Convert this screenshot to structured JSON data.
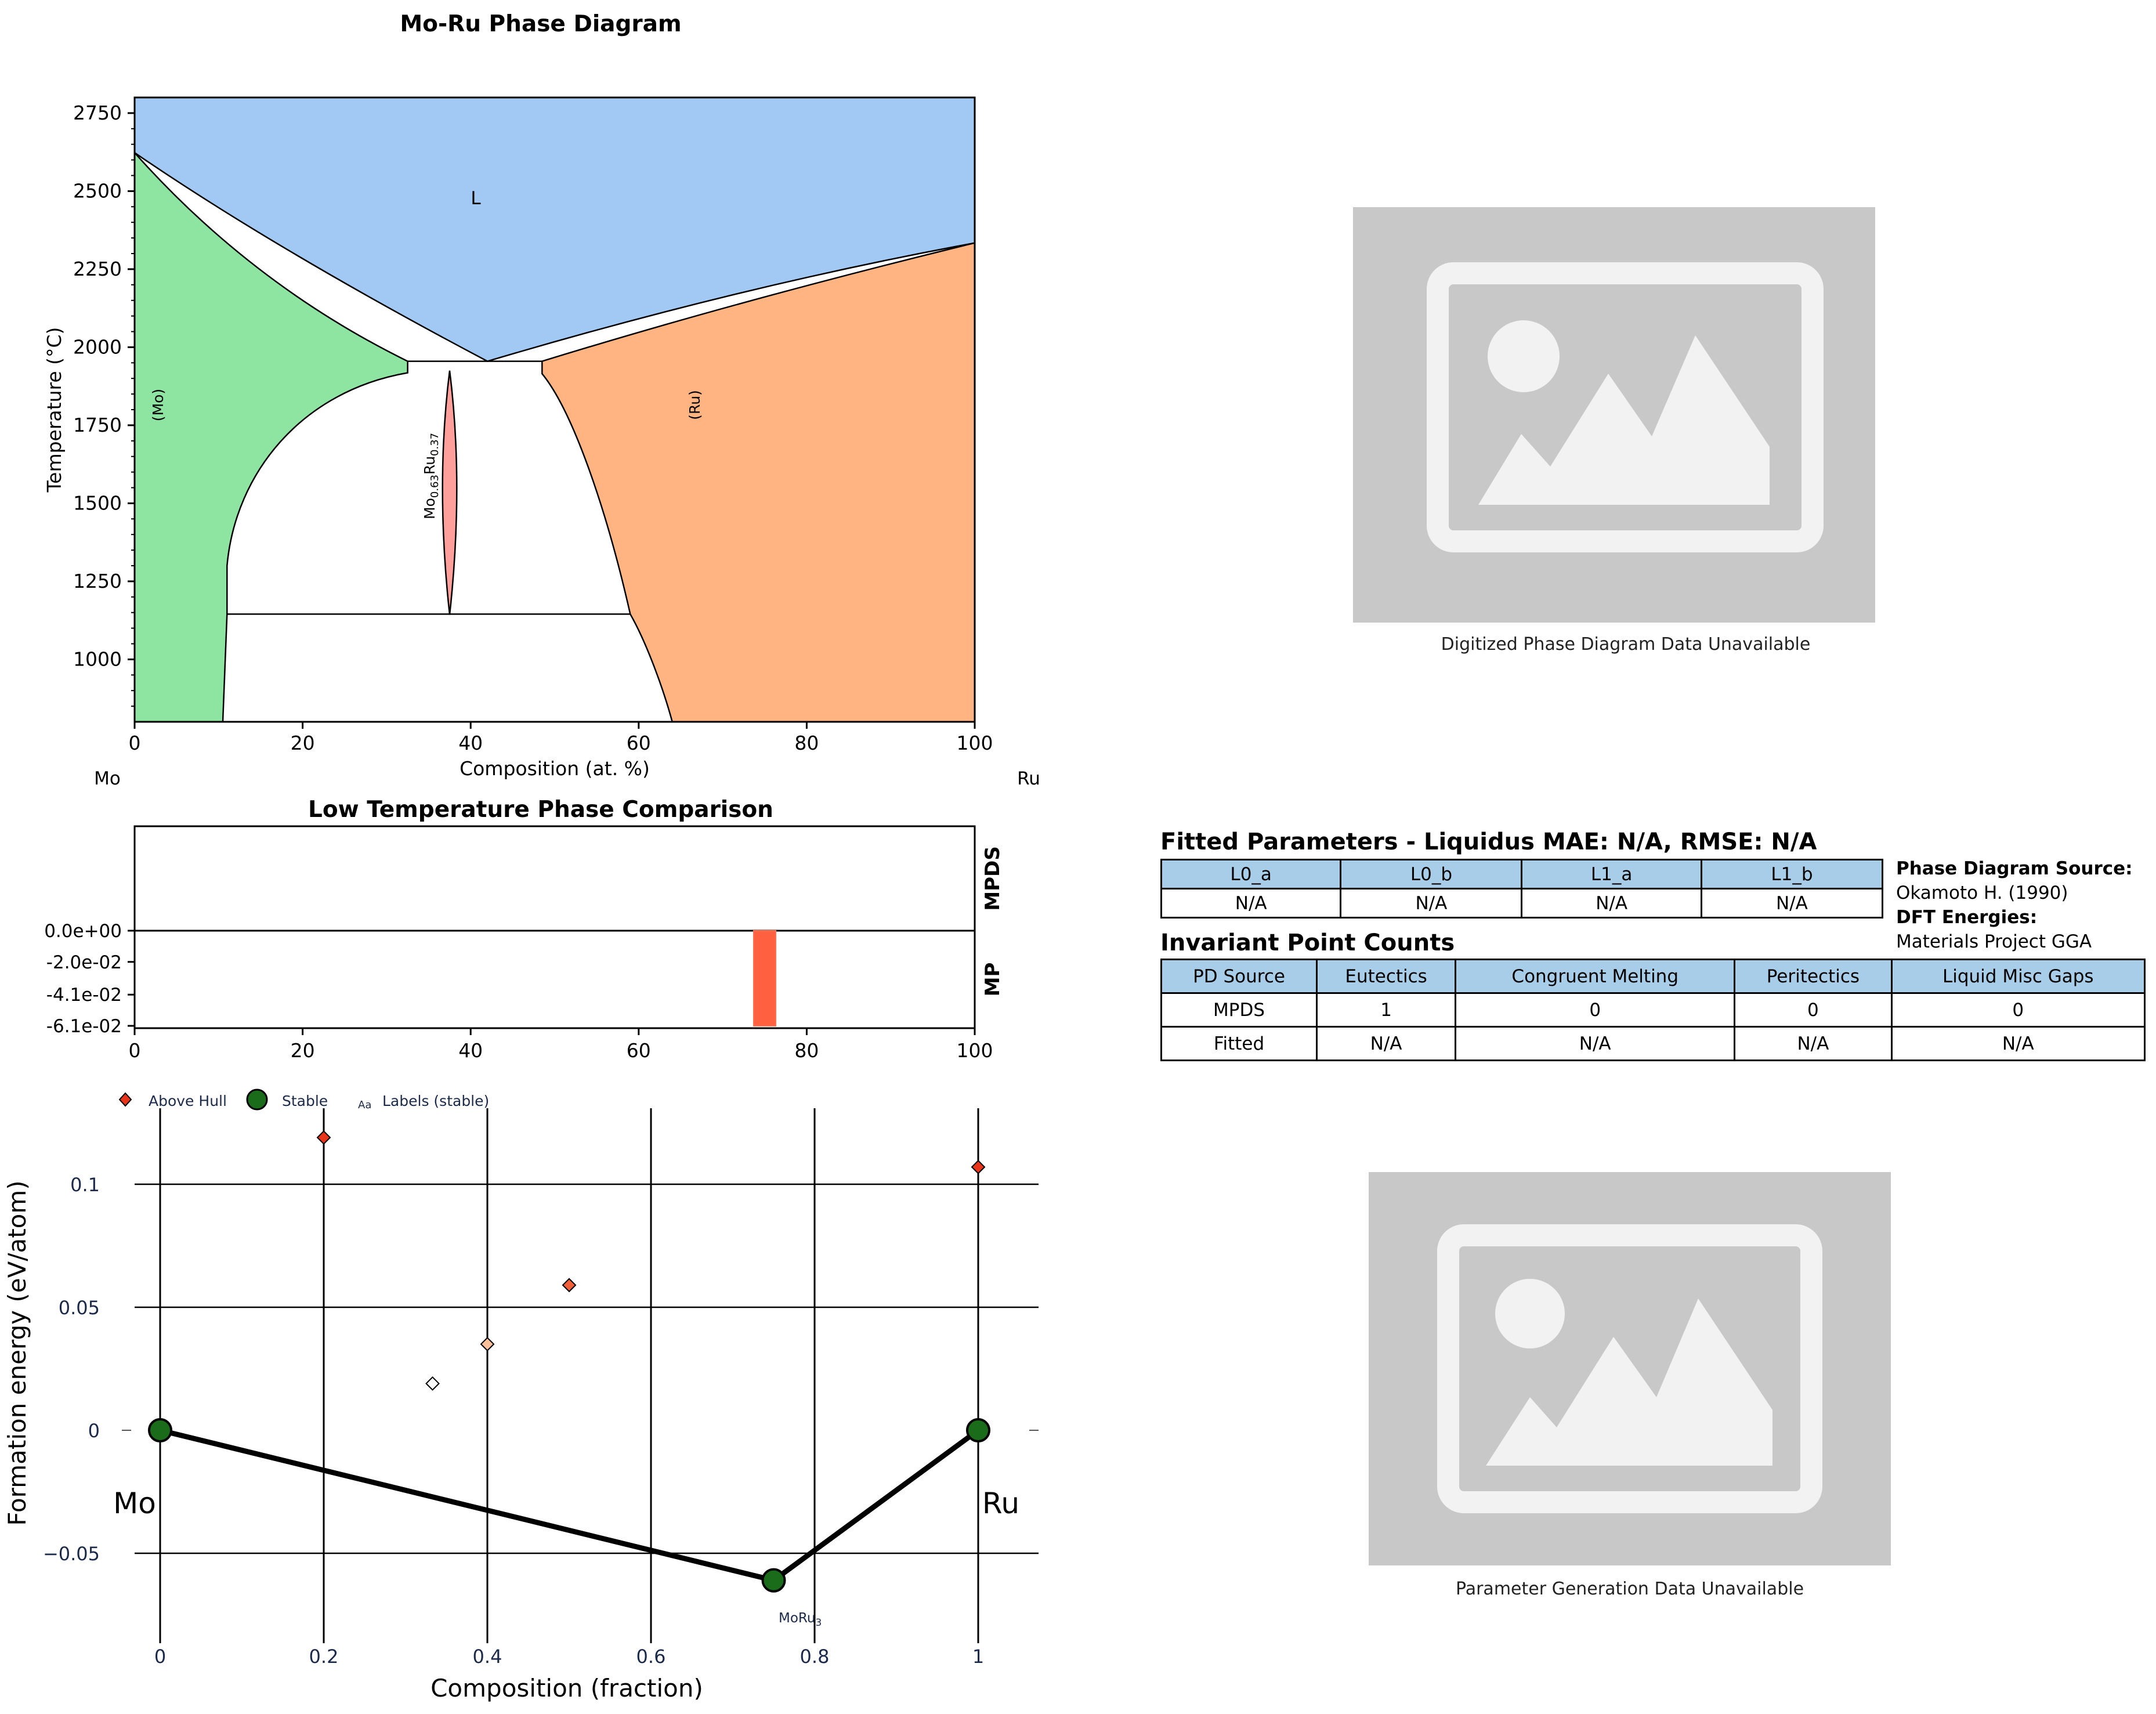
{
  "phase_diagram": {
    "title": "Mo-Ru Phase Diagram",
    "xlabel": "Composition (at. %)",
    "ylabel": "Temperature (°C)",
    "left_element": "Mo",
    "right_element": "Ru",
    "x_ticks": [
      "0",
      "20",
      "40",
      "60",
      "80",
      "100"
    ],
    "y_ticks": [
      "1000",
      "1250",
      "1500",
      "1750",
      "2000",
      "2250",
      "2500",
      "2750"
    ],
    "region_labels": {
      "liquid": "L",
      "mo": "(Mo)",
      "ru": "(Ru)",
      "sigma": "Mo0.63Ru0.37"
    },
    "colors": {
      "liquid": "#a1c9f4",
      "mo": "#8de5a1",
      "ru": "#ffb482",
      "sigma": "#ff9f9b"
    }
  },
  "low_temp": {
    "title": "Low Temperature Phase Comparison",
    "row_labels": [
      "MPDS",
      "MP"
    ],
    "y_ticks": [
      "0.0e+00",
      "-2.0e-02",
      "-4.1e-02",
      "-6.1e-02"
    ],
    "x_ticks": [
      "0",
      "20",
      "40",
      "60",
      "80",
      "100"
    ],
    "bar_color": "#ff6040"
  },
  "hull": {
    "legend": {
      "above": "Above Hull",
      "stable": "Stable",
      "labels_icon": "Aa",
      "labels": "Labels (stable)"
    },
    "xlabel": "Composition (fraction)",
    "ylabel": "Formation energy (eV/atom)",
    "x_ticks": [
      "0",
      "0.2",
      "0.4",
      "0.6",
      "0.8",
      "1"
    ],
    "y_ticks": [
      "0.1",
      "0.05",
      "0",
      "−0.05"
    ],
    "left_element": "Mo",
    "right_element": "Ru",
    "stable_label": "MoRu",
    "stable_label_sub": "3",
    "stable_color": "#1a6b1a"
  },
  "placeholder_top": {
    "caption": "Digitized Phase Diagram Data Unavailable"
  },
  "placeholder_bottom": {
    "caption": "Parameter Generation Data Unavailable"
  },
  "fitted": {
    "title": "Fitted Parameters - Liquidus MAE: N/A, RMSE: N/A",
    "headers": [
      "L0_a",
      "L0_b",
      "L1_a",
      "L1_b"
    ],
    "values": [
      "N/A",
      "N/A",
      "N/A",
      "N/A"
    ]
  },
  "source": {
    "pd_label": "Phase Diagram Source:",
    "pd_value": "Okamoto H. (1990)",
    "dft_label": "DFT Energies:",
    "dft_value": "Materials Project GGA"
  },
  "invariant": {
    "title": "Invariant Point Counts",
    "headers": [
      "PD Source",
      "Eutectics",
      "Congruent Melting",
      "Peritectics",
      "Liquid Misc Gaps"
    ],
    "rows": [
      [
        "MPDS",
        "1",
        "0",
        "0",
        "0"
      ],
      [
        "Fitted",
        "N/A",
        "N/A",
        "N/A",
        "N/A"
      ]
    ]
  },
  "chart_data": [
    {
      "type": "area",
      "title": "Mo-Ru Phase Diagram",
      "xlabel": "Composition (at. %)",
      "ylabel": "Temperature (°C)",
      "xlim": [
        0,
        100
      ],
      "ylim": [
        800,
        2800
      ],
      "regions": [
        {
          "name": "L",
          "boundary": [
            [
              0,
              2623
            ],
            [
              42,
              1955
            ],
            [
              100,
              2334
            ]
          ]
        },
        {
          "name": "(Mo)",
          "boundary": [
            [
              0,
              2623
            ],
            [
              32.5,
              1955
            ],
            [
              11,
              1145
            ],
            [
              10.5,
              800
            ],
            [
              0,
              800
            ]
          ]
        },
        {
          "name": "(Ru)",
          "boundary": [
            [
              100,
              2334
            ],
            [
              48.5,
              1955
            ],
            [
              59,
              1145
            ],
            [
              64,
              800
            ],
            [
              100,
              800
            ]
          ]
        },
        {
          "name": "Mo0.63Ru0.37",
          "boundary": [
            [
              37.5,
              1143
            ],
            [
              37.5,
              1925
            ]
          ]
        }
      ],
      "invariant_lines": [
        {
          "T": 1955,
          "x_from": 32.5,
          "x_to": 48.5
        },
        {
          "T": 1145,
          "x_from": 11,
          "x_to": 59
        }
      ]
    },
    {
      "type": "bar",
      "title": "Low Temperature Phase Comparison",
      "xlim": [
        0,
        100
      ],
      "series": [
        {
          "name": "MPDS",
          "x": [],
          "values": []
        },
        {
          "name": "MP",
          "x": [
            75
          ],
          "values": [
            -0.061
          ]
        }
      ]
    },
    {
      "type": "scatter",
      "xlabel": "Composition (fraction)",
      "ylabel": "Formation energy (eV/atom)",
      "xlim": [
        -0.05,
        1.05
      ],
      "ylim": [
        -0.066,
        0.13
      ],
      "series": [
        {
          "name": "Above Hull",
          "x": [
            0.2,
            0.333,
            0.4,
            0.5,
            1.0
          ],
          "values": [
            0.119,
            0.019,
            0.035,
            0.059,
            0.107
          ]
        },
        {
          "name": "Stable",
          "x": [
            0,
            0.75,
            1
          ],
          "values": [
            0,
            -0.061,
            0
          ]
        }
      ],
      "hull_line": {
        "x": [
          0,
          0.75,
          1
        ],
        "values": [
          0,
          -0.061,
          0
        ]
      }
    }
  ]
}
